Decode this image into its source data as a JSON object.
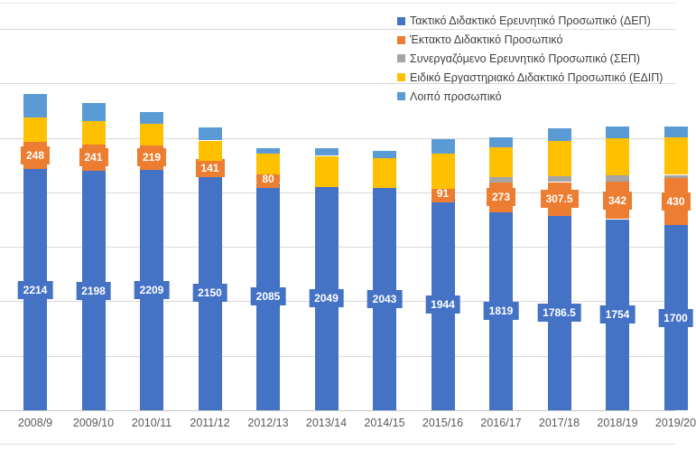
{
  "legend": {
    "items": [
      {
        "label": "Τακτικό Διδακτικό Ερευνητικό Προσωπικό (ΔΕΠ)",
        "color": "#4472C4"
      },
      {
        "label": "Έκτακτο Διδακτικό Προσωπικό",
        "color": "#ED7D31"
      },
      {
        "label": "Συνεργαζόμενο Ερευνητικό Προσωπικό (ΣΕΠ)",
        "color": "#A5A5A5"
      },
      {
        "label": "Ειδικό Εργαστηριακό Διδακτικό Προσωπικό (ΕΔΙΠ)",
        "color": "#FFC000"
      },
      {
        "label": "Λοιπό προσωπικό",
        "color": "#5B9BD5"
      }
    ]
  },
  "chart_data": {
    "type": "bar",
    "stacked": true,
    "title": "",
    "xlabel": "",
    "ylabel": "",
    "ylim": [
      0,
      3500
    ],
    "gridline_step": 500,
    "grid": true,
    "legend_position": "top-right",
    "categories": [
      "2008/9",
      "2009/10",
      "2010/11",
      "2011/12",
      "2012/13",
      "2013/14",
      "2014/15",
      "2015/16",
      "2016/17",
      "2017/18",
      "2018/19",
      "2019/20"
    ],
    "series": [
      {
        "name": "Τακτικό Διδακτικό Ερευνητικό Προσωπικό (ΔΕΠ)",
        "color": "#4472C4",
        "values": [
          2214,
          2198,
          2209,
          2150,
          2085,
          2049,
          2043,
          1944,
          1819,
          1786.5,
          1754,
          1700
        ],
        "labels": [
          "2214",
          "2198",
          "2209",
          "2150",
          "2085",
          "2049",
          "2043",
          "1944",
          "1819",
          "1786.5",
          "1754",
          "1700"
        ]
      },
      {
        "name": "Έκτακτο Διδακτικό Προσωπικό",
        "color": "#ED7D31",
        "values": [
          248,
          241,
          219,
          141,
          80,
          0,
          0,
          91,
          273,
          307.5,
          342,
          430
        ],
        "labels": [
          "248",
          "241",
          "219",
          "141",
          "80",
          "",
          "",
          "91",
          "273",
          "307.5",
          "342",
          "430"
        ]
      },
      {
        "name": "Συνεργαζόμενο Ερευνητικό Προσωπικό (ΣΕΠ)",
        "color": "#A5A5A5",
        "values": [
          0,
          0,
          0,
          0,
          0,
          0,
          0,
          0,
          50,
          50,
          60,
          30
        ],
        "labels": [
          "",
          "",
          "",
          "",
          "",
          "",
          "",
          "",
          "",
          "",
          "",
          ""
        ]
      },
      {
        "name": "Ειδικό Εργαστηριακό Διδακτικό Προσωπικό (ΕΔΙΠ)",
        "color": "#FFC000",
        "values": [
          226,
          218,
          201,
          184,
          193,
          285,
          268,
          318,
          268,
          327,
          343,
          345
        ],
        "labels": [
          "",
          "",
          "",
          "",
          "",
          "",
          "",
          "",
          "",
          "",
          "",
          ""
        ]
      },
      {
        "name": "Λοιπό προσωπικό",
        "color": "#5B9BD5",
        "values": [
          218,
          159,
          109,
          117,
          50,
          67,
          67,
          134,
          92,
          117,
          109,
          100
        ],
        "labels": [
          "",
          "",
          "",
          "",
          "",
          "",
          "",
          "",
          "",
          "",
          "",
          ""
        ]
      }
    ],
    "colors": {
      "gridline": "#D9D9D9",
      "axis_line": "#C6C6C6",
      "x_label_text": "#595959",
      "legend_text": "#404040",
      "data_label_text": "#FFFFFF",
      "background": "#FFFFFF"
    }
  }
}
